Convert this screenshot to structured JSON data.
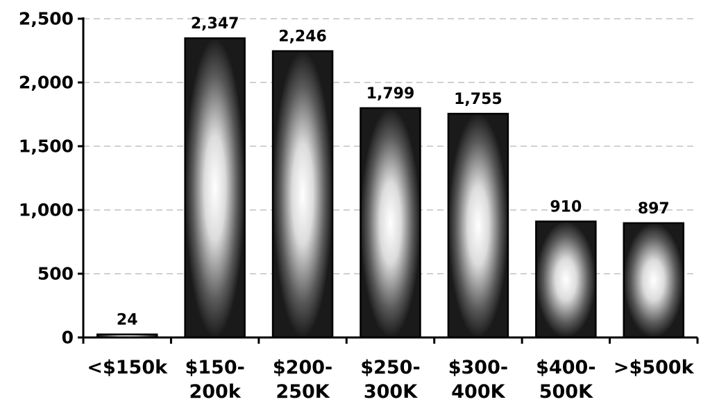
{
  "chart_data": {
    "type": "bar",
    "categories": [
      [
        "<$150k"
      ],
      [
        "$150-",
        "200k"
      ],
      [
        "$200-",
        "250K"
      ],
      [
        "$250-",
        "300K"
      ],
      [
        "$300-",
        "400K"
      ],
      [
        "$400-",
        "500K"
      ],
      [
        ">$500k"
      ]
    ],
    "values": [
      24,
      2347,
      2246,
      1799,
      1755,
      910,
      897
    ],
    "data_labels": [
      "24",
      "2,347",
      "2,246",
      "1,799",
      "1,755",
      "910",
      "897"
    ],
    "title": "",
    "xlabel": "",
    "ylabel": "",
    "ylim": [
      0,
      2500
    ],
    "yticks": [
      0,
      500,
      1000,
      1500,
      2000,
      2500
    ],
    "ytick_labels": [
      "0",
      "500",
      "1,000",
      "1,500",
      "2,000",
      "2,500"
    ],
    "grid": "horizontal dashed",
    "legend": "none",
    "colors": {
      "bar_edge": "#202020",
      "bar_center": "#ffffff",
      "grid": "#a0a0a0",
      "axis": "#000000"
    }
  }
}
